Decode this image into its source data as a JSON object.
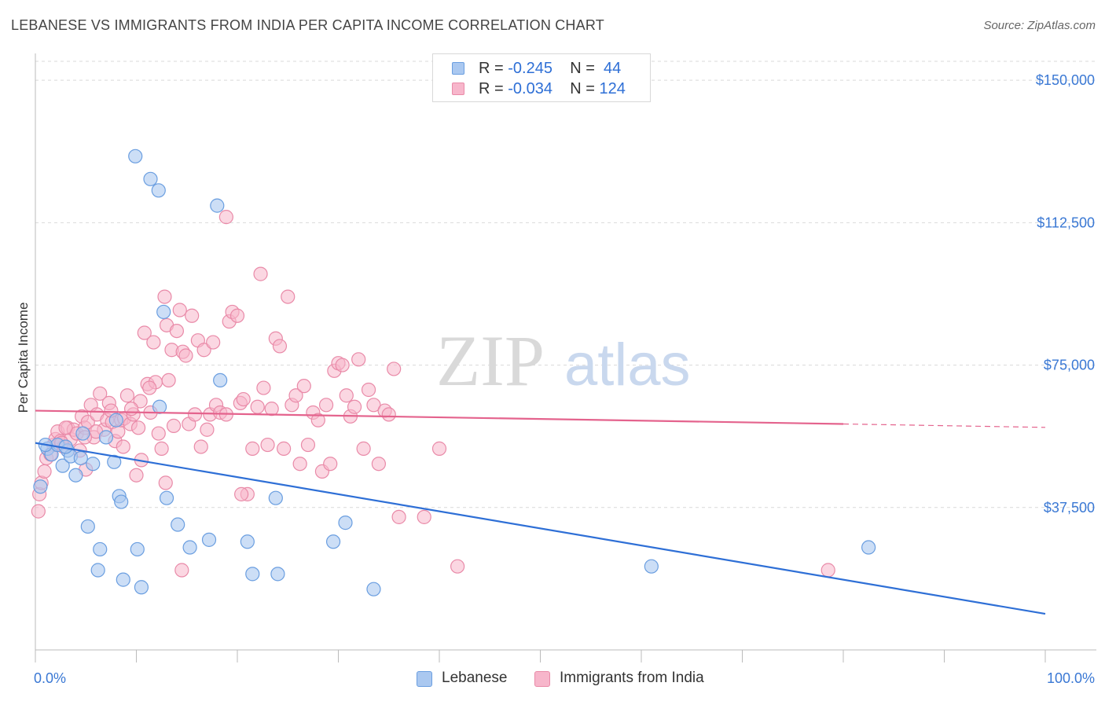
{
  "title": "LEBANESE VS IMMIGRANTS FROM INDIA PER CAPITA INCOME CORRELATION CHART",
  "source": "Source: ZipAtlas.com",
  "watermark": {
    "zip": "ZIP",
    "atlas": "atlas"
  },
  "legend_top": [
    {
      "r_label": "R =",
      "r_value": "-0.245",
      "n_label": "N =",
      "n_value": " 44"
    },
    {
      "r_label": "R =",
      "r_value": "-0.034",
      "n_label": "N =",
      "n_value": "124"
    }
  ],
  "colors": {
    "lebanese_fill": "#aac8f0",
    "lebanese_stroke": "#6a9ee0",
    "lebanese_line": "#2e6fd6",
    "india_fill": "#f7b6cb",
    "india_stroke": "#e98aa8",
    "india_line": "#e4638d",
    "axis_label": "#3a78d4",
    "grid": "#d9d9d9"
  },
  "chart_data": {
    "type": "scatter",
    "title": "LEBANESE VS IMMIGRANTS FROM INDIA PER CAPITA INCOME CORRELATION CHART",
    "xlabel": "",
    "ylabel": "Per Capita Income",
    "xlim": [
      0,
      100
    ],
    "ylim": [
      0,
      155000
    ],
    "x_tick_labels": [
      "0.0%",
      "100.0%"
    ],
    "y_ticks": [
      37500,
      75000,
      112500,
      150000
    ],
    "y_tick_labels": [
      "$37,500",
      "$75,000",
      "$112,500",
      "$150,000"
    ],
    "grid": true,
    "legend_position": "top-center",
    "series": [
      {
        "name": "Lebanese",
        "R": -0.245,
        "N": 44,
        "trend": {
          "x": [
            0,
            100
          ],
          "y": [
            54500,
            9500
          ]
        },
        "points": [
          [
            0.5,
            43000
          ],
          [
            1.2,
            53000
          ],
          [
            1.6,
            51500
          ],
          [
            2.2,
            54000
          ],
          [
            2.7,
            48500
          ],
          [
            3.2,
            52500
          ],
          [
            3.5,
            51000
          ],
          [
            4.0,
            46000
          ],
          [
            4.5,
            50500
          ],
          [
            4.7,
            57000
          ],
          [
            5.2,
            32500
          ],
          [
            5.7,
            49000
          ],
          [
            6.4,
            26500
          ],
          [
            6.2,
            21000
          ],
          [
            7.0,
            56000
          ],
          [
            7.8,
            49500
          ],
          [
            8.0,
            60500
          ],
          [
            8.3,
            40500
          ],
          [
            8.5,
            39000
          ],
          [
            8.7,
            18500
          ],
          [
            9.9,
            130000
          ],
          [
            10.1,
            26500
          ],
          [
            10.5,
            16500
          ],
          [
            11.4,
            124000
          ],
          [
            12.2,
            121000
          ],
          [
            12.7,
            89000
          ],
          [
            13.0,
            40000
          ],
          [
            12.3,
            64000
          ],
          [
            14.1,
            33000
          ],
          [
            15.3,
            27000
          ],
          [
            17.2,
            29000
          ],
          [
            18.0,
            117000
          ],
          [
            18.3,
            71000
          ],
          [
            21.0,
            28500
          ],
          [
            21.5,
            20000
          ],
          [
            23.8,
            40000
          ],
          [
            24.0,
            20000
          ],
          [
            29.5,
            28500
          ],
          [
            30.7,
            33500
          ],
          [
            33.5,
            16000
          ],
          [
            61.0,
            22000
          ],
          [
            82.5,
            27000
          ],
          [
            3.0,
            53500
          ],
          [
            1.0,
            54000
          ]
        ]
      },
      {
        "name": "Immigrants from India",
        "R": -0.034,
        "N": 124,
        "trend": {
          "x": [
            0,
            80
          ],
          "y": [
            63000,
            59500
          ]
        },
        "trend_dashed": {
          "x": [
            80,
            100
          ],
          "y": [
            59500,
            58600
          ]
        },
        "points": [
          [
            0.3,
            36500
          ],
          [
            0.4,
            41000
          ],
          [
            0.6,
            44000
          ],
          [
            0.9,
            47000
          ],
          [
            1.1,
            50500
          ],
          [
            1.5,
            51500
          ],
          [
            1.8,
            54000
          ],
          [
            2.0,
            55500
          ],
          [
            2.2,
            57500
          ],
          [
            2.5,
            55000
          ],
          [
            2.8,
            53500
          ],
          [
            3.2,
            58500
          ],
          [
            3.5,
            55500
          ],
          [
            3.8,
            58000
          ],
          [
            4.1,
            57000
          ],
          [
            4.4,
            52500
          ],
          [
            4.6,
            61500
          ],
          [
            4.9,
            58500
          ],
          [
            5.2,
            60000
          ],
          [
            5.5,
            64500
          ],
          [
            5.8,
            56000
          ],
          [
            6.1,
            62000
          ],
          [
            6.4,
            67500
          ],
          [
            6.8,
            58000
          ],
          [
            7.1,
            60500
          ],
          [
            7.3,
            65000
          ],
          [
            7.6,
            60000
          ],
          [
            7.9,
            55000
          ],
          [
            8.2,
            57500
          ],
          [
            8.5,
            60500
          ],
          [
            8.8,
            61000
          ],
          [
            9.1,
            67000
          ],
          [
            9.4,
            59500
          ],
          [
            9.7,
            62000
          ],
          [
            10.0,
            46000
          ],
          [
            10.2,
            58500
          ],
          [
            10.5,
            50000
          ],
          [
            10.8,
            83500
          ],
          [
            11.1,
            70000
          ],
          [
            11.4,
            62500
          ],
          [
            11.7,
            81000
          ],
          [
            11.9,
            70500
          ],
          [
            12.2,
            57000
          ],
          [
            12.5,
            53000
          ],
          [
            12.8,
            93000
          ],
          [
            13.0,
            85500
          ],
          [
            13.2,
            71000
          ],
          [
            13.5,
            79000
          ],
          [
            13.7,
            59000
          ],
          [
            14.0,
            84000
          ],
          [
            14.3,
            89500
          ],
          [
            14.6,
            78500
          ],
          [
            14.9,
            77500
          ],
          [
            15.2,
            59500
          ],
          [
            15.5,
            88000
          ],
          [
            15.8,
            62000
          ],
          [
            16.1,
            81500
          ],
          [
            16.4,
            53500
          ],
          [
            16.7,
            79000
          ],
          [
            17.0,
            58000
          ],
          [
            17.3,
            62000
          ],
          [
            17.6,
            81000
          ],
          [
            17.9,
            64500
          ],
          [
            18.3,
            62500
          ],
          [
            18.9,
            114000
          ],
          [
            19.2,
            86500
          ],
          [
            19.5,
            89000
          ],
          [
            20.0,
            88000
          ],
          [
            20.3,
            65000
          ],
          [
            20.6,
            66000
          ],
          [
            21.0,
            41000
          ],
          [
            21.5,
            53000
          ],
          [
            22.0,
            64000
          ],
          [
            22.3,
            99000
          ],
          [
            22.6,
            69000
          ],
          [
            23.0,
            54000
          ],
          [
            23.4,
            63500
          ],
          [
            23.8,
            82000
          ],
          [
            24.2,
            80000
          ],
          [
            24.6,
            53000
          ],
          [
            25.0,
            93000
          ],
          [
            25.4,
            64500
          ],
          [
            25.8,
            67000
          ],
          [
            26.2,
            49000
          ],
          [
            26.6,
            69500
          ],
          [
            27.0,
            54000
          ],
          [
            27.5,
            62500
          ],
          [
            28.0,
            60500
          ],
          [
            28.4,
            47000
          ],
          [
            28.8,
            64500
          ],
          [
            29.2,
            49000
          ],
          [
            29.6,
            73500
          ],
          [
            30.0,
            75500
          ],
          [
            30.4,
            75000
          ],
          [
            30.8,
            67000
          ],
          [
            31.2,
            61500
          ],
          [
            31.6,
            64000
          ],
          [
            32.0,
            76500
          ],
          [
            32.5,
            53000
          ],
          [
            33.0,
            68500
          ],
          [
            33.5,
            64500
          ],
          [
            34.0,
            49000
          ],
          [
            34.6,
            63000
          ],
          [
            35.0,
            62000
          ],
          [
            35.5,
            74000
          ],
          [
            36.0,
            35000
          ],
          [
            38.5,
            35000
          ],
          [
            40.0,
            53000
          ],
          [
            41.8,
            22000
          ],
          [
            78.5,
            21000
          ],
          [
            12.9,
            44000
          ],
          [
            10.4,
            65500
          ],
          [
            9.5,
            63500
          ],
          [
            11.3,
            69000
          ],
          [
            6.0,
            57500
          ],
          [
            5.0,
            47500
          ],
          [
            14.5,
            21000
          ],
          [
            18.9,
            62000
          ],
          [
            20.4,
            41000
          ],
          [
            8.7,
            53500
          ],
          [
            3.0,
            58500
          ],
          [
            2.6,
            54500
          ],
          [
            4.9,
            56000
          ],
          [
            7.5,
            63000
          ]
        ]
      }
    ]
  },
  "legend_bottom": [
    {
      "label": "Lebanese"
    },
    {
      "label": "Immigrants from India"
    }
  ]
}
